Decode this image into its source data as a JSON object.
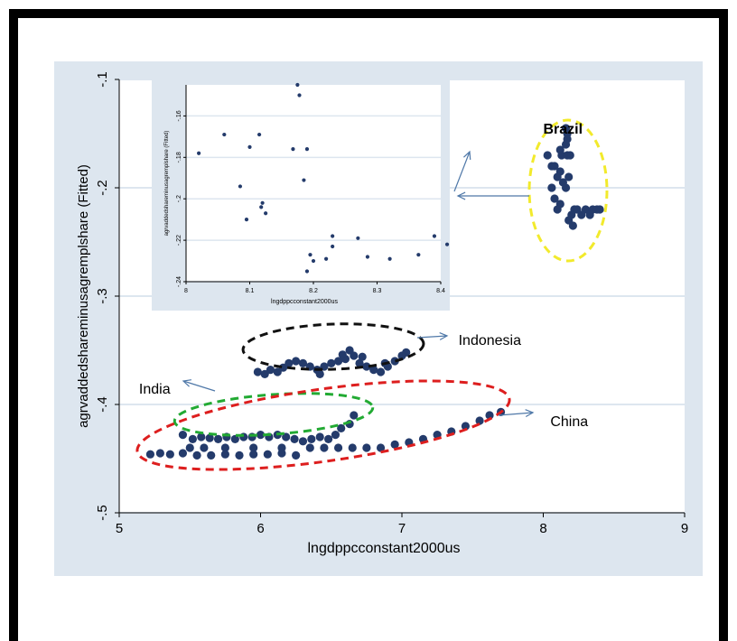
{
  "colors": {
    "panel": "#dde6ef",
    "plot_bg": "#ffffff",
    "grid": "#dde6ef",
    "marker": "#243b6b",
    "arrow": "#4f78a8",
    "brazil_ellipse": "#f2ea2c",
    "indonesia_ellipse": "#111111",
    "india_ellipse": "#22aa33",
    "china_ellipse": "#dd1e1e"
  },
  "chart_data": [
    {
      "type": "scatter",
      "xlabel": "lngdppcconstant2000us",
      "ylabel": "agrvaddedshareminusagremplshare (Fitted)",
      "xlim": [
        5,
        9
      ],
      "ylim": [
        -0.5,
        -0.1
      ],
      "xticks": [
        "5",
        "6",
        "7",
        "8",
        "9"
      ],
      "yticks": [
        "-.1",
        "-.2",
        "-.3",
        "-.4",
        "-.5"
      ],
      "grid": true,
      "annotations": [
        {
          "text": "Brazil",
          "x": 8.0,
          "y": -0.15
        },
        {
          "text": "Indonesia",
          "x": 7.4,
          "y": -0.345
        },
        {
          "text": "India",
          "x": 5.14,
          "y": -0.39
        },
        {
          "text": "China",
          "x": 8.05,
          "y": -0.42
        }
      ],
      "series": [
        {
          "group": "Brazil",
          "points": [
            [
              8.16,
              -0.145
            ],
            [
              8.17,
              -0.15
            ],
            [
              8.17,
              -0.155
            ],
            [
              8.16,
              -0.16
            ],
            [
              8.13,
              -0.17
            ],
            [
              8.17,
              -0.17
            ],
            [
              8.19,
              -0.17
            ],
            [
              8.12,
              -0.165
            ],
            [
              8.03,
              -0.17
            ],
            [
              8.06,
              -0.18
            ],
            [
              8.08,
              -0.18
            ],
            [
              8.12,
              -0.185
            ],
            [
              8.1,
              -0.19
            ],
            [
              8.18,
              -0.19
            ],
            [
              8.14,
              -0.195
            ],
            [
              8.16,
              -0.2
            ],
            [
              8.06,
              -0.2
            ],
            [
              8.08,
              -0.21
            ],
            [
              8.12,
              -0.215
            ],
            [
              8.1,
              -0.22
            ],
            [
              8.22,
              -0.22
            ],
            [
              8.24,
              -0.22
            ],
            [
              8.3,
              -0.22
            ],
            [
              8.35,
              -0.22
            ],
            [
              8.38,
              -0.22
            ],
            [
              8.4,
              -0.22
            ],
            [
              8.2,
              -0.225
            ],
            [
              8.27,
              -0.225
            ],
            [
              8.33,
              -0.225
            ],
            [
              8.18,
              -0.23
            ],
            [
              8.21,
              -0.235
            ]
          ]
        },
        {
          "group": "Indonesia",
          "points": [
            [
              5.98,
              -0.37
            ],
            [
              6.03,
              -0.372
            ],
            [
              6.07,
              -0.368
            ],
            [
              6.12,
              -0.37
            ],
            [
              6.16,
              -0.366
            ],
            [
              6.2,
              -0.362
            ],
            [
              6.25,
              -0.36
            ],
            [
              6.3,
              -0.362
            ],
            [
              6.35,
              -0.365
            ],
            [
              6.4,
              -0.368
            ],
            [
              6.45,
              -0.365
            ],
            [
              6.5,
              -0.362
            ],
            [
              6.55,
              -0.36
            ],
            [
              6.6,
              -0.358
            ],
            [
              6.63,
              -0.35
            ],
            [
              6.66,
              -0.355
            ],
            [
              6.7,
              -0.362
            ],
            [
              6.75,
              -0.365
            ],
            [
              6.8,
              -0.368
            ],
            [
              6.85,
              -0.37
            ],
            [
              6.9,
              -0.365
            ],
            [
              6.95,
              -0.36
            ],
            [
              7.0,
              -0.355
            ],
            [
              7.03,
              -0.352
            ],
            [
              6.58,
              -0.354
            ],
            [
              6.72,
              -0.356
            ],
            [
              6.88,
              -0.362
            ],
            [
              6.42,
              -0.372
            ]
          ]
        },
        {
          "group": "India",
          "points": [
            [
              5.45,
              -0.428
            ],
            [
              5.52,
              -0.432
            ],
            [
              5.58,
              -0.43
            ],
            [
              5.64,
              -0.431
            ],
            [
              5.7,
              -0.432
            ],
            [
              5.76,
              -0.43
            ],
            [
              5.82,
              -0.432
            ],
            [
              5.88,
              -0.43
            ],
            [
              5.94,
              -0.43
            ],
            [
              6.0,
              -0.428
            ],
            [
              6.06,
              -0.43
            ],
            [
              6.12,
              -0.428
            ],
            [
              6.18,
              -0.43
            ],
            [
              6.24,
              -0.432
            ],
            [
              6.3,
              -0.434
            ],
            [
              6.36,
              -0.432
            ],
            [
              6.42,
              -0.43
            ],
            [
              6.48,
              -0.432
            ],
            [
              6.53,
              -0.428
            ],
            [
              6.57,
              -0.422
            ],
            [
              6.63,
              -0.418
            ],
            [
              6.66,
              -0.41
            ],
            [
              5.5,
              -0.44
            ],
            [
              5.6,
              -0.44
            ],
            [
              5.75,
              -0.44
            ],
            [
              5.95,
              -0.44
            ],
            [
              6.15,
              -0.44
            ]
          ]
        },
        {
          "group": "China",
          "points": [
            [
              5.22,
              -0.446
            ],
            [
              5.29,
              -0.445
            ],
            [
              5.36,
              -0.446
            ],
            [
              5.45,
              -0.445
            ],
            [
              5.55,
              -0.447
            ],
            [
              5.65,
              -0.447
            ],
            [
              5.75,
              -0.446
            ],
            [
              5.85,
              -0.447
            ],
            [
              5.95,
              -0.446
            ],
            [
              6.05,
              -0.446
            ],
            [
              6.15,
              -0.445
            ],
            [
              6.25,
              -0.447
            ],
            [
              6.35,
              -0.44
            ],
            [
              6.45,
              -0.44
            ],
            [
              6.55,
              -0.44
            ],
            [
              6.65,
              -0.44
            ],
            [
              6.75,
              -0.44
            ],
            [
              6.85,
              -0.44
            ],
            [
              6.95,
              -0.437
            ],
            [
              7.05,
              -0.435
            ],
            [
              7.15,
              -0.432
            ],
            [
              7.25,
              -0.428
            ],
            [
              7.35,
              -0.425
            ],
            [
              7.45,
              -0.42
            ],
            [
              7.55,
              -0.415
            ],
            [
              7.62,
              -0.41
            ],
            [
              7.7,
              -0.407
            ]
          ]
        }
      ]
    },
    {
      "type": "scatter",
      "xlabel": "lngdppcconstant2000us",
      "ylabel": "agrvaddedshareminusagremplshare (Fitted)",
      "xlim": [
        8.0,
        8.4
      ],
      "ylim": [
        -0.24,
        -0.145
      ],
      "xticks": [
        "8",
        "8.1",
        "8.2",
        "8.3",
        "8.4"
      ],
      "yticks": [
        "-.16",
        "-.18",
        "-.2",
        "-.22",
        "-.24"
      ],
      "grid": true,
      "series": [
        {
          "group": "Brazil (detail)",
          "points": [
            [
              8.175,
              -0.145
            ],
            [
              8.178,
              -0.15
            ],
            [
              8.06,
              -0.169
            ],
            [
              8.115,
              -0.169
            ],
            [
              8.02,
              -0.178
            ],
            [
              8.1,
              -0.175
            ],
            [
              8.168,
              -0.176
            ],
            [
              8.19,
              -0.176
            ],
            [
              8.085,
              -0.194
            ],
            [
              8.185,
              -0.191
            ],
            [
              8.12,
              -0.202
            ],
            [
              8.118,
              -0.204
            ],
            [
              8.125,
              -0.207
            ],
            [
              8.095,
              -0.21
            ],
            [
              8.23,
              -0.218
            ],
            [
              8.27,
              -0.219
            ],
            [
              8.39,
              -0.218
            ],
            [
              8.23,
              -0.223
            ],
            [
              8.41,
              -0.222
            ],
            [
              8.195,
              -0.227
            ],
            [
              8.22,
              -0.229
            ],
            [
              8.2,
              -0.23
            ],
            [
              8.285,
              -0.228
            ],
            [
              8.32,
              -0.229
            ],
            [
              8.365,
              -0.227
            ],
            [
              8.19,
              -0.235
            ]
          ]
        }
      ]
    }
  ]
}
